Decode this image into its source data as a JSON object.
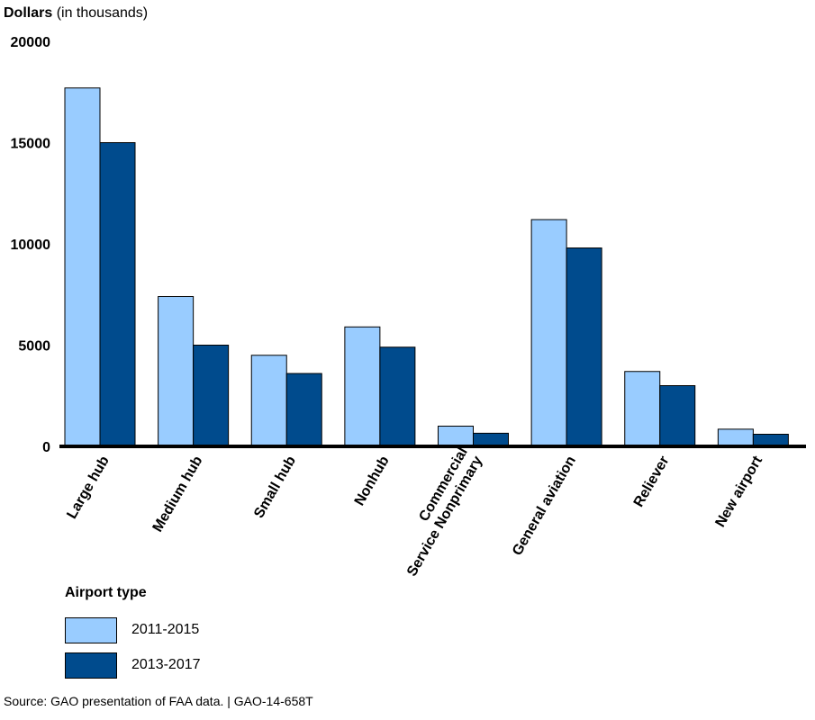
{
  "chart_data": {
    "type": "bar",
    "ylabel_bold": "Dollars",
    "ylabel_rest": "(in thousands)",
    "ylim": [
      0,
      20000
    ],
    "yticks": [
      "0",
      "5000",
      "10000",
      "15000",
      "20000"
    ],
    "ytick_values": [
      0,
      5000,
      10000,
      15000,
      20000
    ],
    "categories": [
      [
        "Large hub"
      ],
      [
        "Medium hub"
      ],
      [
        "Small hub"
      ],
      [
        "Nonhub"
      ],
      [
        "Commercial",
        "Service Nonprimary"
      ],
      [
        "General aviation"
      ],
      [
        "Reliever"
      ],
      [
        "New airport"
      ]
    ],
    "series": [
      {
        "name": "2011-2015",
        "color": "#99ccff",
        "values": [
          17700,
          7400,
          4500,
          5900,
          1000,
          11200,
          3700,
          850
        ]
      },
      {
        "name": "2013-2017",
        "color": "#004b8d",
        "values": [
          15000,
          5000,
          3600,
          4900,
          650,
          9800,
          3000,
          600
        ]
      }
    ],
    "legend_title": "Airport type",
    "legend_placement": "bottom-left",
    "grid": false
  },
  "source": "Source: GAO presentation of FAA data.  |  GAO-14-658T"
}
